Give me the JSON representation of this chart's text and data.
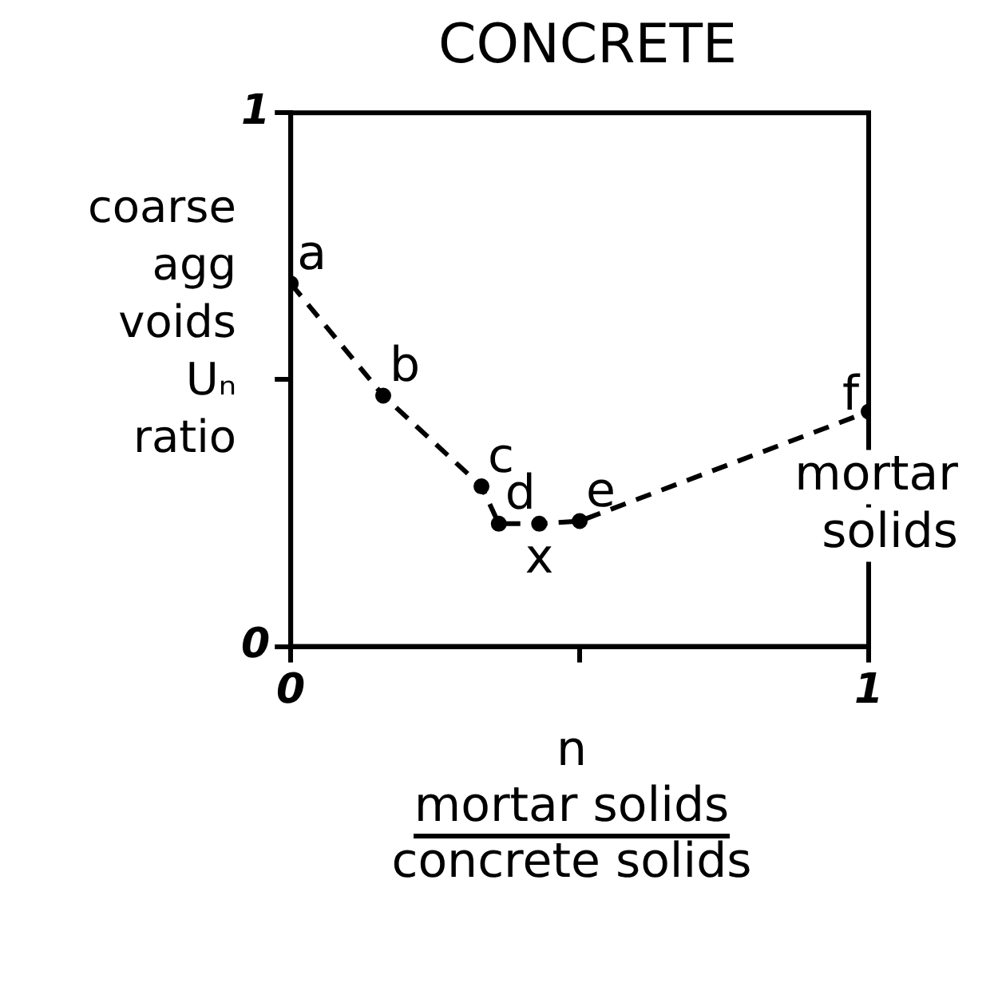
{
  "chart_data": {
    "type": "line",
    "title": "CONCRETE",
    "xlabel": "n",
    "ylabel": "coarse agg voids Uₙ ratio",
    "x": [
      0,
      0.16,
      0.33,
      0.36,
      0.43,
      0.5,
      1
    ],
    "series": [
      {
        "color": "#000000",
        "values": [
          0.68,
          0.47,
          0.3,
          0.23,
          0.23,
          0.235,
          0.44
        ]
      }
    ],
    "xlim": [
      0,
      1
    ],
    "ylim": [
      0,
      1
    ],
    "xticks": [
      0,
      {
        "value": 0.5,
        "label": null
      },
      1
    ],
    "yticks": [
      0,
      {
        "value": 0.5,
        "label": null
      },
      1
    ],
    "marker": "circle",
    "line_style": "dashed",
    "grid": false,
    "legend": false,
    "annotations": [
      {
        "text": "a",
        "x": 0,
        "y": 0.68
      },
      {
        "text": "b",
        "x": 0.16,
        "y": 0.47
      },
      {
        "text": "c",
        "x": 0.33,
        "y": 0.3
      },
      {
        "text": "d",
        "x": 0.36,
        "y": 0.23
      },
      {
        "text": "e",
        "x": 0.5,
        "y": 0.235
      },
      {
        "text": "x",
        "x": 0.43,
        "y": 0.23
      },
      {
        "text": "f",
        "x": 1,
        "y": 0.44
      },
      {
        "text": "mortar solids",
        "x": 1,
        "y": 0.44
      },
      "mortar solids",
      "concrete solids"
    ]
  }
}
